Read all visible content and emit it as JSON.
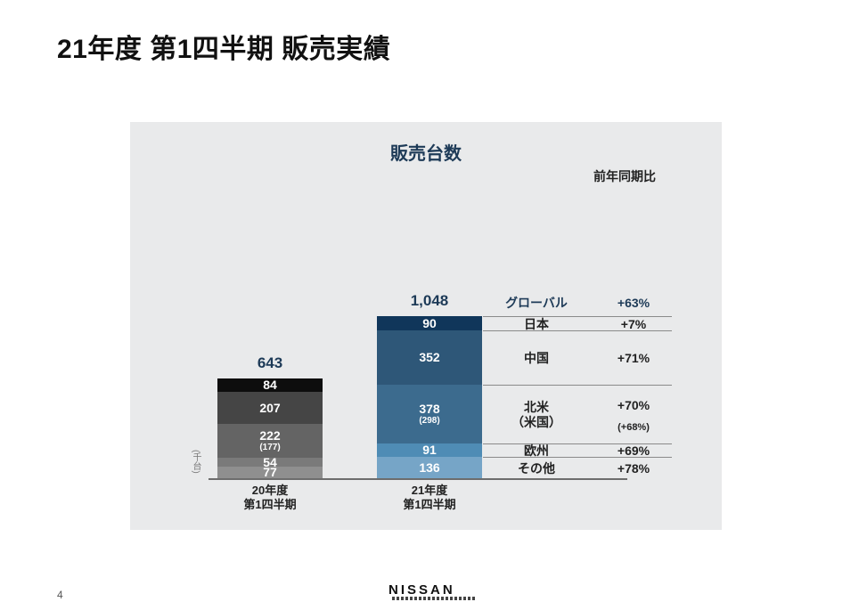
{
  "page": {
    "title": "21年度 第1四半期 販売実績",
    "page_number": "4",
    "logo_text": "NISSAN"
  },
  "chart_data": {
    "type": "bar",
    "stacked": true,
    "title": "販売台数",
    "unit_label": "(千台)",
    "categories": [
      "20年度 第1四半期",
      "21年度 第1四半期"
    ],
    "category_lines": [
      [
        "20年度",
        "第1四半期"
      ],
      [
        "21年度",
        "第1四半期"
      ]
    ],
    "totals": [
      "643",
      "1,048"
    ],
    "series": [
      {
        "name": "日本",
        "values": [
          84,
          90
        ],
        "colors": [
          "#0d0d0d",
          "#10365a"
        ]
      },
      {
        "name": "中国",
        "values": [
          207,
          352
        ],
        "colors": [
          "#454545",
          "#2e5778"
        ]
      },
      {
        "name": "北米（米国）",
        "values": [
          222,
          378
        ],
        "sub_labels": [
          "(177)",
          "(298)"
        ],
        "colors": [
          "#646464",
          "#3c6b8e"
        ]
      },
      {
        "name": "欧州",
        "values": [
          54,
          91
        ],
        "colors": [
          "#7a7a7a",
          "#4f8cb5"
        ]
      },
      {
        "name": "その他",
        "values": [
          77,
          136
        ],
        "colors": [
          "#8f8f8f",
          "#76a5c7"
        ]
      }
    ],
    "yoy_header": "前年同期比",
    "yoy_rows": [
      {
        "region": "グローバル",
        "pct": "+63%"
      },
      {
        "region": "日本",
        "pct": "+7%"
      },
      {
        "region": "中国",
        "pct": "+71%"
      },
      {
        "region_lines": [
          "北米",
          "（米国）"
        ],
        "pct": "+70%",
        "pct_sub": "(+68%)"
      },
      {
        "region": "欧州",
        "pct": "+69%"
      },
      {
        "region": "その他",
        "pct": "+78%"
      }
    ]
  }
}
